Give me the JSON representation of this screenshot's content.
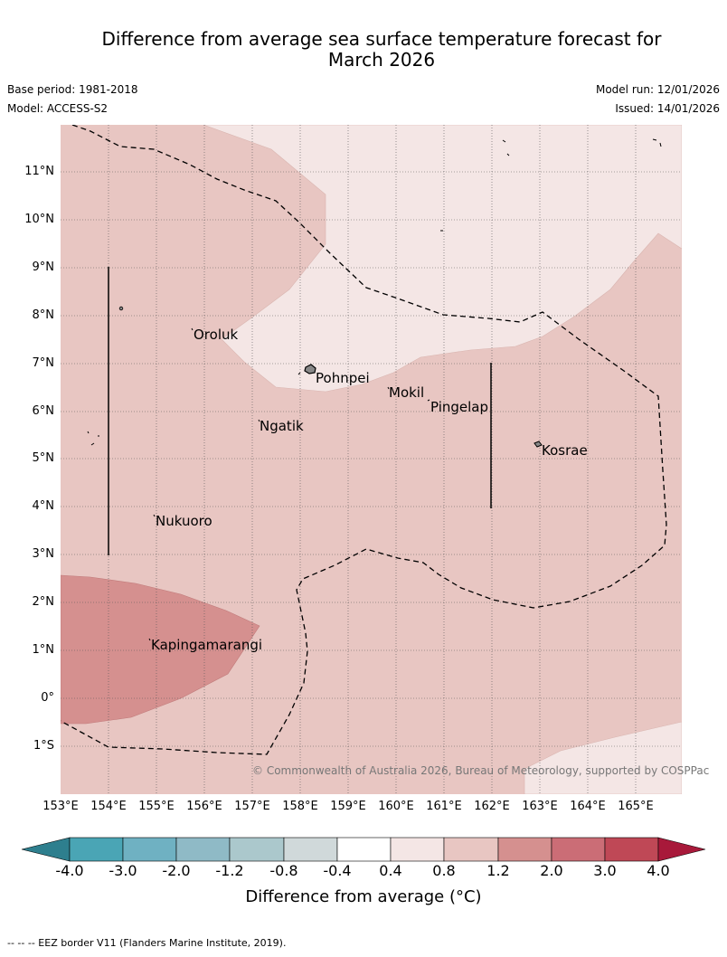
{
  "title_line1": "Difference from average sea surface temperature forecast for",
  "title_line2": "March 2026",
  "base_period": "Base period: 1981-2018",
  "model": "Model: ACCESS-S2",
  "model_run": "Model run: 12/01/2026",
  "issued": "Issued: 14/01/2026",
  "lat_labels": [
    "11°N",
    "10°N",
    "9°N",
    "8°N",
    "7°N",
    "6°N",
    "5°N",
    "4°N",
    "3°N",
    "2°N",
    "1°N",
    "0°",
    "1°S"
  ],
  "lon_labels": [
    "153°E",
    "154°E",
    "155°E",
    "156°E",
    "157°E",
    "158°E",
    "159°E",
    "160°E",
    "161°E",
    "162°E",
    "163°E",
    "164°E",
    "165°E"
  ],
  "places": {
    "oroluk": "Oroluk",
    "pohnpei": "Pohnpei",
    "mokil": "Mokil",
    "pingelap": "Pingelap",
    "ngatik": "Ngatik",
    "kosrae": "Kosrae",
    "nukuoro": "Nukuoro",
    "kapingamarangi": "Kapingamarangi"
  },
  "copyright": "© Commonwealth of Australia 2026, Bureau of Meteorology, supported by COSPPac",
  "colorbar": {
    "ticks": [
      "-4.0",
      "-3.0",
      "-2.0",
      "-1.2",
      "-0.8",
      "-0.4",
      "0.4",
      "0.8",
      "1.2",
      "2.0",
      "3.0",
      "4.0"
    ],
    "colors": [
      "#2e7f8e",
      "#4aa5b5",
      "#6fb1c2",
      "#8fbac6",
      "#abc8cc",
      "#d0d9da",
      "#ffffff",
      "#f4e6e5",
      "#e8c6c2",
      "#d5908f",
      "#cb6d76",
      "#bf4856",
      "#a8193a"
    ],
    "title": "Difference from average (°C)"
  },
  "footnote": "-- -- -- EEZ border V11 (Flanders Marine Institute, 2019)."
}
